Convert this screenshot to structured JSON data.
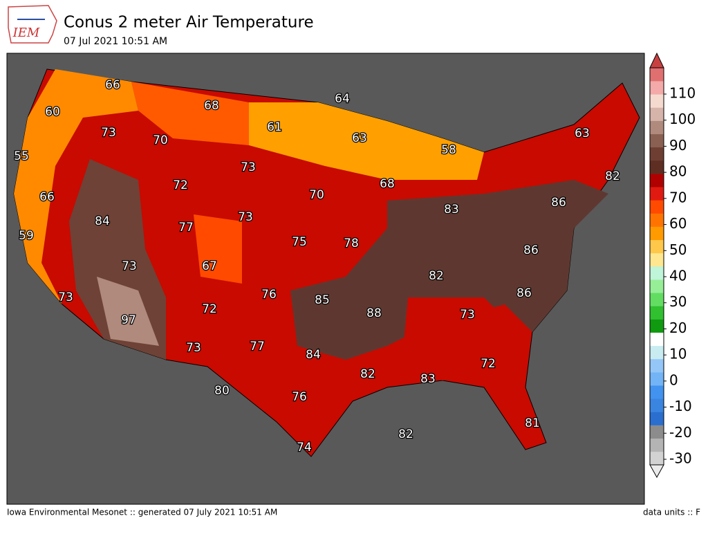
{
  "header": {
    "logo": "IEM",
    "title": "Conus 2 meter Air Temperature",
    "subtitle": "07 Jul 2021 10:51 AM"
  },
  "map": {
    "labels": [
      "66",
      "68",
      "64",
      "60",
      "73",
      "70",
      "61",
      "63",
      "58",
      "63",
      "55",
      "73",
      "72",
      "68",
      "82",
      "66",
      "70",
      "86",
      "83",
      "84",
      "73",
      "77",
      "59",
      "75",
      "78",
      "86",
      "73",
      "67",
      "82",
      "76",
      "85",
      "86",
      "73",
      "88",
      "73",
      "97",
      "72",
      "84",
      "77",
      "73",
      "72",
      "82",
      "83",
      "80",
      "76",
      "81",
      "82",
      "74"
    ]
  },
  "colorbar": {
    "ticks": [
      "-30",
      "-20",
      "-10",
      "0",
      "10",
      "20",
      "30",
      "40",
      "50",
      "60",
      "70",
      "80",
      "90",
      "100",
      "110"
    ],
    "colors": [
      "#ebebeb",
      "#d2d2d2",
      "#b4b4b4",
      "#8c8c8c",
      "#2a6fd0",
      "#3a85e0",
      "#4193ef",
      "#72b4f6",
      "#94c6f8",
      "#c8ecf0",
      "#ffffff",
      "#109a10",
      "#30c030",
      "#62dd62",
      "#96ef96",
      "#bff5d8",
      "#ffe790",
      "#ffc84a",
      "#ff9a00",
      "#ff7400",
      "#ff4a00",
      "#e01a10",
      "#b00000",
      "#5e2e22",
      "#6e3e32",
      "#8a6052",
      "#b08a7c",
      "#d6b4aa",
      "#f5dad0",
      "#f3aaa8",
      "#e07070",
      "#c84040"
    ]
  },
  "footer": {
    "left": "Iowa Environmental Mesonet :: generated 07 July 2021 10:51 AM",
    "right": "data units :: F"
  }
}
